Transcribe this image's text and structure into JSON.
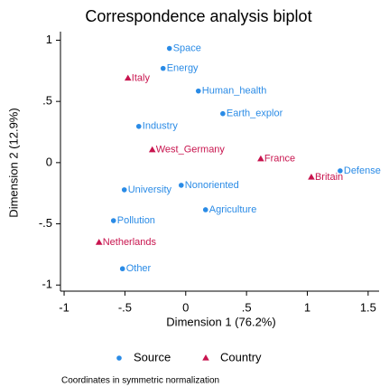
{
  "chart_data": {
    "type": "scatter",
    "title": "Correspondence analysis biplot",
    "x_label": "Dimension 1 (76.2%)",
    "y_label": "Dimension 2 (12.9%)",
    "note": "Coordinates in symmetric normalization",
    "xlim": [
      -1.03,
      1.59
    ],
    "ylim": [
      -1.05,
      1.07
    ],
    "xticks": [
      -1,
      {
        "value": -0.5,
        "label": "-.5"
      },
      0,
      {
        "value": 0.5,
        "label": ".5"
      },
      1,
      1.5
    ],
    "yticks": [
      -1,
      {
        "value": -0.5,
        "label": "-.5"
      },
      0,
      {
        "value": 0.5,
        "label": ".5"
      },
      1
    ],
    "grid": false,
    "series": [
      {
        "name": "Source",
        "color": "#2a8be6",
        "marker": "circle",
        "labels": [
          "Space",
          "Energy",
          "Human_health",
          "Earth_explor",
          "Industry",
          "Defense",
          "Nonoriented",
          "University",
          "Agriculture",
          "Pollution",
          "Other"
        ],
        "x": [
          -0.134,
          -0.186,
          0.104,
          0.305,
          -0.386,
          1.27,
          -0.037,
          -0.505,
          0.163,
          -0.594,
          -0.52
        ],
        "values": [
          0.933,
          0.77,
          0.585,
          0.4,
          0.296,
          -0.067,
          -0.185,
          -0.222,
          -0.385,
          -0.474,
          -0.867
        ]
      },
      {
        "name": "Country",
        "color": "#c8144e",
        "marker": "triangle",
        "labels": [
          "Italy",
          "West_Germany",
          "France",
          "Britain",
          "Netherlands"
        ],
        "x": [
          -0.475,
          -0.275,
          0.617,
          1.033,
          -0.713
        ],
        "values": [
          0.689,
          0.104,
          0.03,
          -0.119,
          -0.652
        ]
      }
    ]
  }
}
